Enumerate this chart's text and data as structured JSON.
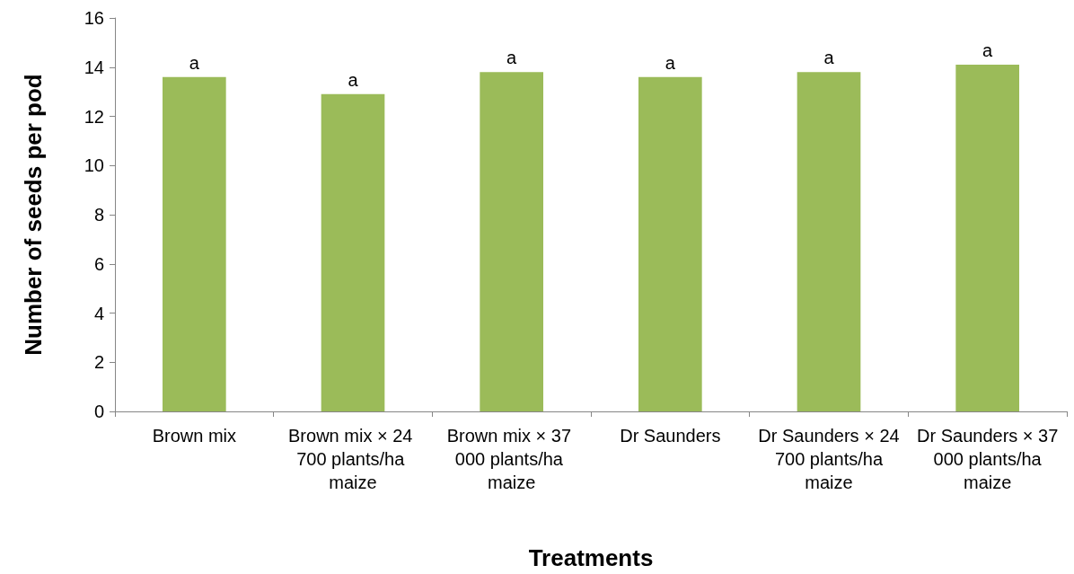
{
  "chart_data": {
    "type": "bar",
    "xlabel": "Treatments",
    "ylabel": "Number of seeds per pod",
    "categories": [
      "Brown mix",
      "Brown mix × 24 700 plants/ha maize",
      "Brown mix × 37 000 plants/ha maize",
      "Dr Saunders",
      "Dr Saunders × 24 700 plants/ha maize",
      "Dr Saunders × 37 000 plants/ha maize"
    ],
    "values": [
      13.6,
      12.9,
      13.8,
      13.6,
      13.8,
      14.1
    ],
    "color": "#9bbb59",
    "ylim": [
      0,
      16
    ],
    "yticks": [
      0,
      2,
      4,
      6,
      8,
      10,
      12,
      14,
      16
    ],
    "grid": false,
    "annotations": [
      {
        "text": "a",
        "x": "Brown mix",
        "y": 13.6
      },
      {
        "text": "a",
        "x": "Brown mix × 24 700 plants/ha maize",
        "y": 12.9
      },
      {
        "text": "a",
        "x": "Brown mix × 37 000 plants/ha maize",
        "y": 13.8
      },
      {
        "text": "a",
        "x": "Dr Saunders",
        "y": 13.6
      },
      {
        "text": "a",
        "x": "Dr Saunders × 24 700 plants/ha maize",
        "y": 13.8
      },
      {
        "text": "a",
        "x": "Dr Saunders × 37 000 plants/ha maize",
        "y": 14.1
      }
    ]
  }
}
